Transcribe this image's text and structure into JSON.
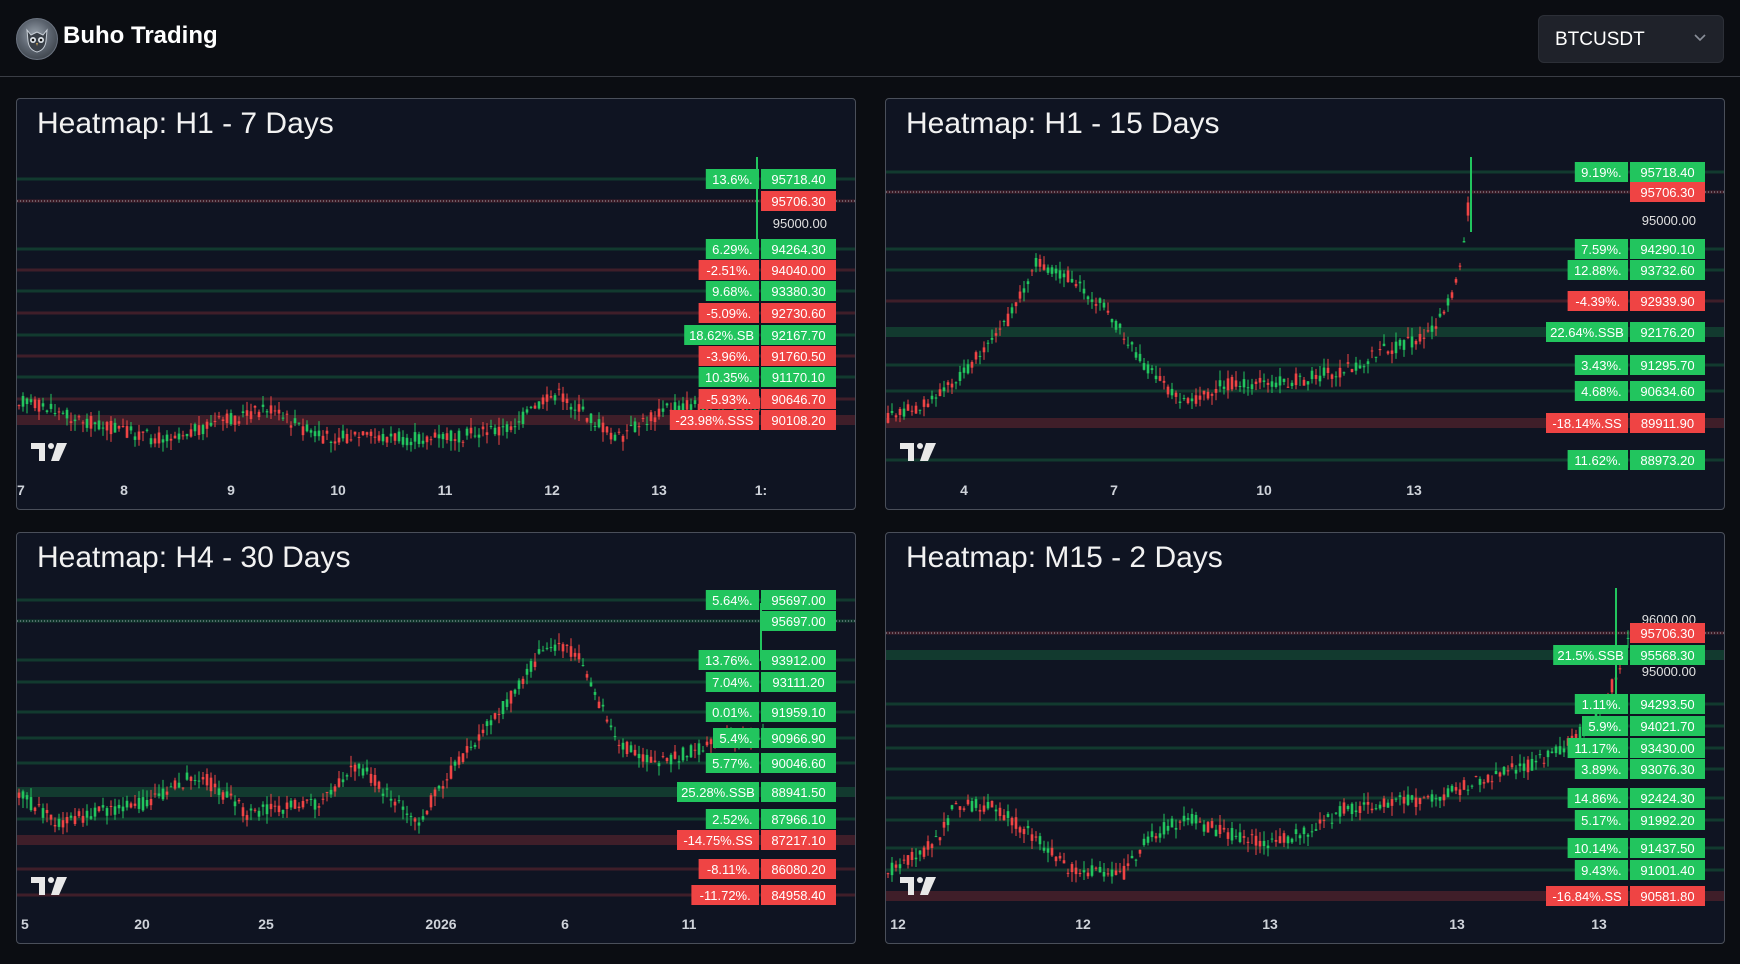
{
  "app": {
    "title": "Buho Trading"
  },
  "symbol_select": {
    "value": "BTCUSDT"
  },
  "colors": {
    "background": "#0f1422",
    "green": "#22c55e",
    "red": "#ef4444",
    "up_candle": "#22c55e",
    "down_candle": "#ef4444"
  },
  "panels": [
    {
      "title": "Heatmap: H1 - 7 Days",
      "x_ticks": [
        "7",
        "8",
        "9",
        "10",
        "11",
        "12",
        "13",
        "1:"
      ],
      "axis_value": "95000.00",
      "levels": [
        {
          "pct": "13.6%.",
          "price": "95718.40",
          "color": "green"
        },
        {
          "pct": "",
          "price": "95706.30",
          "color": "red"
        },
        {
          "pct": "6.29%.",
          "price": "94264.30",
          "color": "green"
        },
        {
          "pct": "-2.51%.",
          "price": "94040.00",
          "color": "red"
        },
        {
          "pct": "9.68%.",
          "price": "93380.30",
          "color": "green"
        },
        {
          "pct": "-5.09%.",
          "price": "92730.60",
          "color": "red"
        },
        {
          "pct": "18.62%.SB",
          "price": "92167.70",
          "color": "green"
        },
        {
          "pct": "-3.96%.",
          "price": "91760.50",
          "color": "red"
        },
        {
          "pct": "10.35%.",
          "price": "91170.10",
          "color": "green"
        },
        {
          "pct": "-5.93%.",
          "price": "90646.70",
          "color": "red"
        },
        {
          "pct": "-23.98%.SSS",
          "price": "90108.20",
          "color": "red"
        }
      ]
    },
    {
      "title": "Heatmap: H1 - 15 Days",
      "x_ticks": [
        "4",
        "7",
        "10",
        "13"
      ],
      "axis_value": "95000.00",
      "levels": [
        {
          "pct": "9.19%.",
          "price": "95718.40",
          "color": "green"
        },
        {
          "pct": "",
          "price": "95706.30",
          "color": "red"
        },
        {
          "pct": "7.59%.",
          "price": "94290.10",
          "color": "green"
        },
        {
          "pct": "12.88%.",
          "price": "93732.60",
          "color": "green"
        },
        {
          "pct": "-4.39%.",
          "price": "92939.90",
          "color": "red"
        },
        {
          "pct": "22.64%.SSB",
          "price": "92176.20",
          "color": "green"
        },
        {
          "pct": "3.43%.",
          "price": "91295.70",
          "color": "green"
        },
        {
          "pct": "4.68%.",
          "price": "90634.60",
          "color": "green"
        },
        {
          "pct": "-18.14%.SS",
          "price": "89911.90",
          "color": "red"
        },
        {
          "pct": "11.62%.",
          "price": "88973.20",
          "color": "green"
        }
      ]
    },
    {
      "title": "Heatmap: H4 - 30 Days",
      "x_ticks": [
        "5",
        "20",
        "25",
        "2026",
        "6",
        "11"
      ],
      "axis_value": "",
      "levels": [
        {
          "pct": "5.64%.",
          "price": "95697.00",
          "color": "green"
        },
        {
          "pct": "",
          "price": "95697.00",
          "color": "green"
        },
        {
          "pct": "13.76%.",
          "price": "93912.00",
          "color": "green"
        },
        {
          "pct": "7.04%.",
          "price": "93111.20",
          "color": "green"
        },
        {
          "pct": "0.01%.",
          "price": "91959.10",
          "color": "green"
        },
        {
          "pct": "5.4%.",
          "price": "90966.90",
          "color": "green"
        },
        {
          "pct": "5.77%.",
          "price": "90046.60",
          "color": "green"
        },
        {
          "pct": "25.28%.SSB",
          "price": "88941.50",
          "color": "green"
        },
        {
          "pct": "2.52%.",
          "price": "87966.10",
          "color": "green"
        },
        {
          "pct": "-14.75%.SS",
          "price": "87217.10",
          "color": "red"
        },
        {
          "pct": "-8.11%.",
          "price": "86080.20",
          "color": "red"
        },
        {
          "pct": "-11.72%.",
          "price": "84958.40",
          "color": "red"
        }
      ]
    },
    {
      "title": "Heatmap: M15 - 2 Days",
      "x_ticks": [
        "12",
        "12",
        "13",
        "13",
        "13"
      ],
      "axis_value": "96000.00",
      "axis_value_2": "95000.00",
      "levels": [
        {
          "pct": "",
          "price": "95706.30",
          "color": "red"
        },
        {
          "pct": "21.5%.SSB",
          "price": "95568.30",
          "color": "green"
        },
        {
          "pct": "1.11%.",
          "price": "94293.50",
          "color": "green"
        },
        {
          "pct": "5.9%.",
          "price": "94021.70",
          "color": "green"
        },
        {
          "pct": "11.17%.",
          "price": "93430.00",
          "color": "green"
        },
        {
          "pct": "3.89%.",
          "price": "93076.30",
          "color": "green"
        },
        {
          "pct": "14.86%.",
          "price": "92424.30",
          "color": "green"
        },
        {
          "pct": "5.17%.",
          "price": "91992.20",
          "color": "green"
        },
        {
          "pct": "10.14%.",
          "price": "91437.50",
          "color": "green"
        },
        {
          "pct": "9.43%.",
          "price": "91001.40",
          "color": "green"
        },
        {
          "pct": "-16.84%.SS",
          "price": "90581.80",
          "color": "red"
        }
      ]
    }
  ]
}
